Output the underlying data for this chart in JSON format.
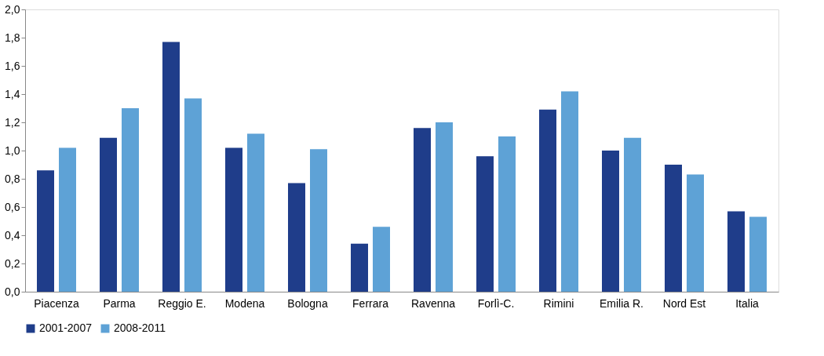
{
  "chart_data": {
    "type": "bar",
    "categories": [
      "Piacenza",
      "Parma",
      "Reggio E.",
      "Modena",
      "Bologna",
      "Ferrara",
      "Ravenna",
      "Forlì-C.",
      "Rimini",
      "Emilia R.",
      "Nord Est",
      "Italia"
    ],
    "series": [
      {
        "name": "2001-2007",
        "color": "#1f3d8a",
        "values": [
          0.86,
          1.09,
          1.77,
          1.02,
          0.77,
          0.34,
          1.16,
          0.96,
          1.29,
          1.0,
          0.9,
          0.57
        ]
      },
      {
        "name": "2008-2011",
        "color": "#5ea2d6",
        "values": [
          1.02,
          1.3,
          1.37,
          1.12,
          1.01,
          0.46,
          1.2,
          1.1,
          1.42,
          1.09,
          0.83,
          0.53
        ]
      }
    ],
    "ylim": [
      0,
      2
    ],
    "yticks": [
      {
        "value": 0,
        "label": "0,0"
      },
      {
        "value": 0.2,
        "label": "0,2"
      },
      {
        "value": 0.4,
        "label": "0,4"
      },
      {
        "value": 0.6,
        "label": "0,6"
      },
      {
        "value": 0.8,
        "label": "0,8"
      },
      {
        "value": 1,
        "label": "1,0"
      },
      {
        "value": 1.2,
        "label": "1,2"
      },
      {
        "value": 1.4,
        "label": "1,4"
      },
      {
        "value": 1.6,
        "label": "1,6"
      },
      {
        "value": 1.8,
        "label": "1,8"
      },
      {
        "value": 2,
        "label": "2,0"
      }
    ],
    "grid": false,
    "legend": "bottom"
  }
}
